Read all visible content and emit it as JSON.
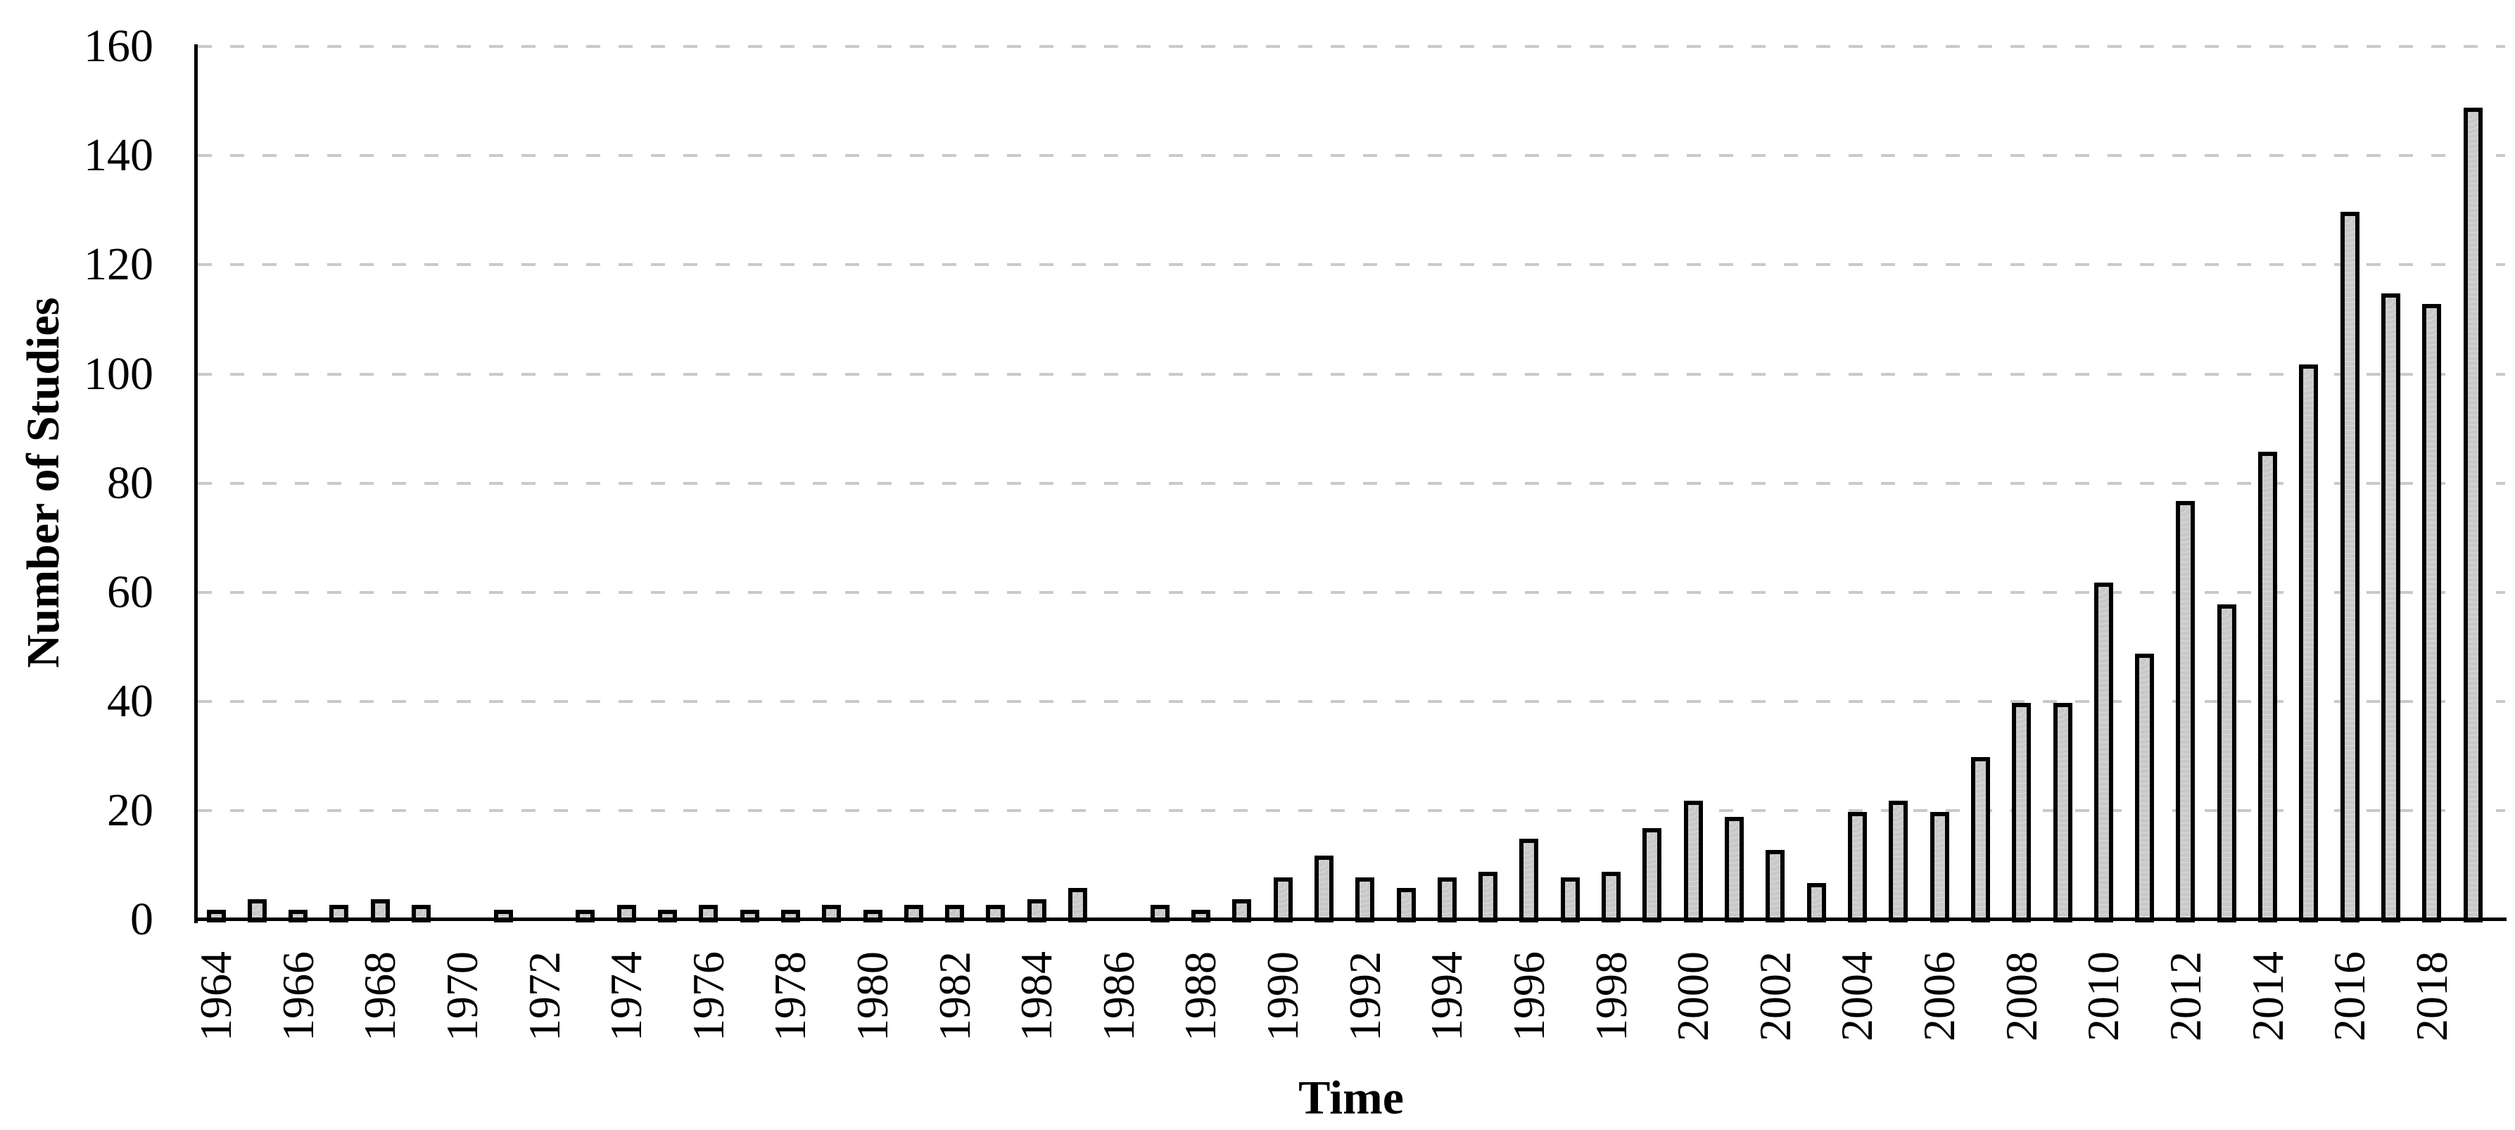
{
  "chart_data": {
    "type": "bar",
    "title": "",
    "xlabel": "Time",
    "ylabel": "Number of Studies",
    "ylim": [
      0,
      160
    ],
    "yticks": [
      0,
      20,
      40,
      60,
      80,
      100,
      120,
      140,
      160
    ],
    "x_tick_labels": [
      "1964",
      "1966",
      "1968",
      "1970",
      "1972",
      "1974",
      "1976",
      "1978",
      "1980",
      "1982",
      "1984",
      "1986",
      "1988",
      "1990",
      "1992",
      "1994",
      "1996",
      "1998",
      "2000",
      "2002",
      "2004",
      "2006",
      "2008",
      "2010",
      "2012",
      "2014",
      "2016",
      "2018"
    ],
    "categories": [
      1964,
      1965,
      1966,
      1967,
      1968,
      1969,
      1970,
      1971,
      1972,
      1973,
      1974,
      1975,
      1976,
      1977,
      1978,
      1979,
      1980,
      1981,
      1982,
      1983,
      1984,
      1985,
      1986,
      1987,
      1988,
      1989,
      1990,
      1991,
      1992,
      1993,
      1994,
      1995,
      1996,
      1997,
      1998,
      1999,
      2000,
      2001,
      2002,
      2003,
      2004,
      2005,
      2006,
      2007,
      2008,
      2009,
      2010,
      2011,
      2012,
      2013,
      2014,
      2015,
      2016,
      2017,
      2018,
      2019
    ],
    "values": [
      1,
      3,
      1,
      2,
      3,
      2,
      0,
      1,
      0,
      1,
      2,
      1,
      2,
      1,
      1,
      2,
      1,
      2,
      2,
      2,
      3,
      5,
      0,
      2,
      1,
      3,
      7,
      11,
      7,
      5,
      7,
      8,
      14,
      7,
      8,
      16,
      21,
      18,
      12,
      6,
      19,
      21,
      19,
      29,
      39,
      39,
      61,
      48,
      76,
      57,
      85,
      101,
      129,
      114,
      112,
      148
    ],
    "grid": "horizontal-dashed",
    "legend": "none",
    "colors": {
      "bar_fill": "#c9c9c9",
      "bar_border": "#000000",
      "gridline": "#c9c9c9",
      "axis": "#000000",
      "text": "#000000",
      "background": "#ffffff"
    }
  }
}
